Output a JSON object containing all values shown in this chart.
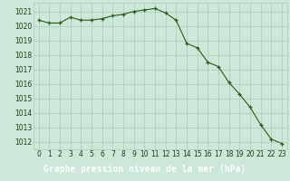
{
  "x": [
    0,
    1,
    2,
    3,
    4,
    5,
    6,
    7,
    8,
    9,
    10,
    11,
    12,
    13,
    14,
    15,
    16,
    17,
    18,
    19,
    20,
    21,
    22,
    23
  ],
  "y": [
    1020.4,
    1020.2,
    1020.2,
    1020.6,
    1020.4,
    1020.4,
    1020.5,
    1020.7,
    1020.8,
    1021.0,
    1021.1,
    1021.2,
    1020.9,
    1020.4,
    1018.8,
    1018.5,
    1017.5,
    1017.2,
    1016.1,
    1015.3,
    1014.4,
    1013.2,
    1012.2,
    1011.9
  ],
  "line_color": "#2d5a1b",
  "marker_color": "#2d5a1b",
  "bg_color": "#cce8d8",
  "grid_color": "#aaccbb",
  "xlabel": "Graphe pression niveau de la mer (hPa)",
  "xlabel_fontsize": 7.0,
  "ylabel_ticks": [
    1012,
    1013,
    1014,
    1015,
    1016,
    1017,
    1018,
    1019,
    1020,
    1021
  ],
  "xlim": [
    -0.5,
    23.5
  ],
  "ylim": [
    1011.5,
    1021.6
  ],
  "xticks": [
    0,
    1,
    2,
    3,
    4,
    5,
    6,
    7,
    8,
    9,
    10,
    11,
    12,
    13,
    14,
    15,
    16,
    17,
    18,
    19,
    20,
    21,
    22,
    23
  ],
  "tick_fontsize": 5.5,
  "tick_color": "#1a4010",
  "bottom_bar_color": "#2d6e1a",
  "bottom_bar_text_color": "#ffffff"
}
